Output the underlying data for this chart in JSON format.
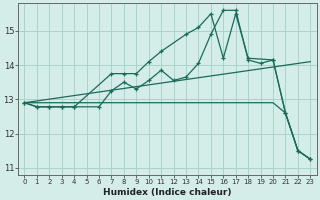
{
  "xlabel": "Humidex (Indice chaleur)",
  "bg_color": "#d4ede8",
  "grid_color": "#a8d4cc",
  "line_color": "#1a6b5a",
  "xlim": [
    -0.5,
    23.5
  ],
  "ylim": [
    10.8,
    15.8
  ],
  "xticks": [
    0,
    1,
    2,
    3,
    4,
    5,
    6,
    7,
    8,
    9,
    10,
    11,
    12,
    13,
    14,
    15,
    16,
    17,
    18,
    19,
    20,
    21,
    22,
    23
  ],
  "yticks": [
    11,
    12,
    13,
    14,
    15
  ],
  "line1_x": [
    0,
    1,
    2,
    3,
    4,
    7,
    8,
    9,
    10,
    11,
    13,
    14,
    15,
    16,
    17,
    18,
    20,
    21,
    22,
    23
  ],
  "line1_y": [
    12.9,
    12.78,
    12.78,
    12.78,
    12.78,
    13.75,
    13.75,
    13.75,
    14.1,
    14.4,
    14.9,
    15.1,
    15.5,
    14.2,
    15.5,
    14.2,
    14.15,
    12.6,
    11.5,
    11.25
  ],
  "line2_x": [
    0,
    1,
    2,
    3,
    4,
    6,
    7,
    8,
    9,
    10,
    11,
    12,
    13,
    14,
    15,
    16,
    17,
    18,
    19,
    20,
    21,
    22,
    23
  ],
  "line2_y": [
    12.9,
    12.78,
    12.78,
    12.78,
    12.78,
    12.78,
    13.25,
    13.5,
    13.3,
    13.55,
    13.85,
    13.55,
    13.65,
    14.05,
    14.9,
    15.6,
    15.6,
    14.15,
    14.05,
    14.15,
    12.6,
    11.5,
    11.25
  ],
  "line3_x": [
    0,
    20,
    21,
    22,
    23
  ],
  "line3_y": [
    12.9,
    12.9,
    12.6,
    11.5,
    11.25
  ],
  "line4_x": [
    0,
    23
  ],
  "line4_y": [
    12.9,
    14.1
  ],
  "marker_size": 3.5
}
